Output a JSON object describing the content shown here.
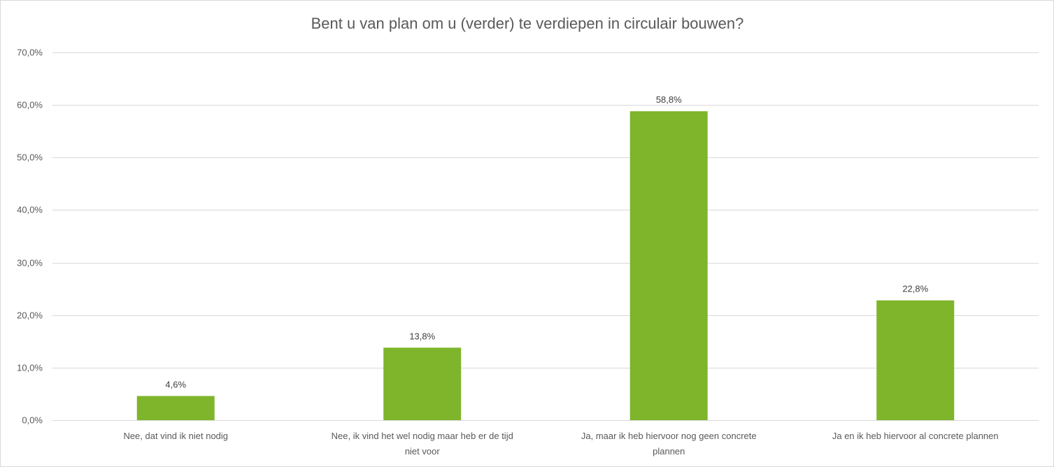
{
  "chart_data": {
    "type": "bar",
    "title": "Bent u van plan om u (verder) te verdiepen in circulair bouwen?",
    "categories": [
      [
        "Nee, dat vind ik niet nodig"
      ],
      [
        "Nee, ik vind het wel nodig maar heb er de tijd",
        "niet voor"
      ],
      [
        "Ja, maar ik heb hiervoor nog geen concrete",
        "plannen"
      ],
      [
        "Ja en ik heb hiervoor al concrete plannen"
      ]
    ],
    "values": [
      4.6,
      13.8,
      58.8,
      22.8
    ],
    "data_labels": [
      "4,6%",
      "13,8%",
      "58,8%",
      "22,8%"
    ],
    "ylim": [
      0,
      70
    ],
    "yticks": [
      0,
      10,
      20,
      30,
      40,
      50,
      60,
      70
    ],
    "ytick_labels": [
      "0,0%",
      "10,0%",
      "20,0%",
      "30,0%",
      "40,0%",
      "50,0%",
      "60,0%",
      "70,0%"
    ],
    "xlabel": "",
    "ylabel": "",
    "grid": true,
    "legend": "none",
    "colors": {
      "bar": "#7eb52b",
      "grid": "#d9d9d9",
      "text": "#595959"
    }
  }
}
